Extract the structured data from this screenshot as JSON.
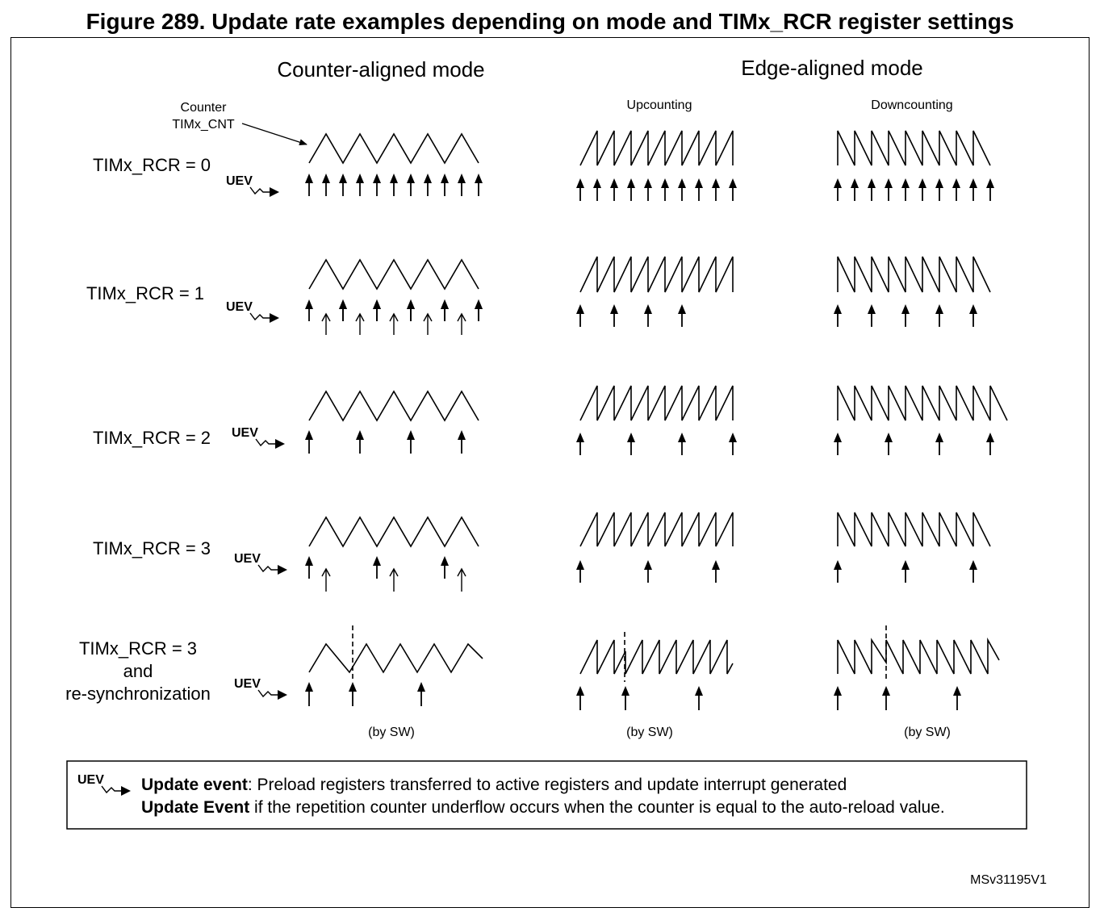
{
  "figure": {
    "title": "Figure 289. Update rate examples depending on mode and TIMx_RCR register settings",
    "reference": "MSv31195V1"
  },
  "headings": {
    "center_aligned": "Counter-aligned mode",
    "edge_aligned": "Edge-aligned mode",
    "upcounting": "Upcounting",
    "downcounting": "Downcounting"
  },
  "counter_annotation": {
    "line1": "Counter",
    "line2": "TIMx_CNT"
  },
  "uev_label": "UEV",
  "rows": [
    {
      "label_lines": [
        "TIMx_RCR = 0"
      ]
    },
    {
      "label_lines": [
        "TIMx_RCR = 1"
      ]
    },
    {
      "label_lines": [
        "TIMx_RCR = 2"
      ]
    },
    {
      "label_lines": [
        "TIMx_RCR = 3"
      ]
    },
    {
      "label_lines": [
        "TIMx_RCR = 3",
        "and",
        "re-synchronization"
      ]
    }
  ],
  "by_sw_label": "(by SW)",
  "legend": {
    "uev_symbol": "UEV",
    "line1_bold": "Update event",
    "line1_rest": ": Preload registers transferred to active registers and update interrupt generated",
    "line2_bold": "Update Event",
    "line2_rest": " if the repetition counter underflow occurs when the counter is equal to the auto-reload value."
  }
}
